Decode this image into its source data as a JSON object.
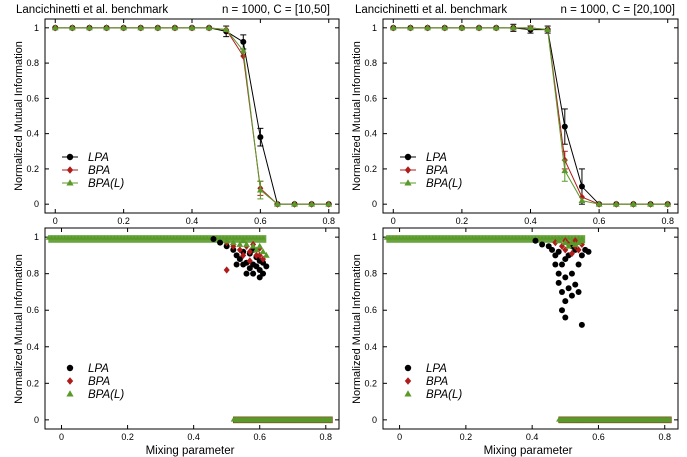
{
  "figure": {
    "colors": {
      "LPA": "#000000",
      "BPA": "#b01b1b",
      "BPA(L)": "#5a9a2a"
    },
    "ylabel": "Normalized Mutual Information",
    "xlabel": "Mixing parameter"
  },
  "chart_data": [
    {
      "type": "line",
      "title_left": "Lancichinetti et al. benchmark",
      "title_right": "n = 1000, C = [10,50]",
      "xlabel": "",
      "ylabel": "Normalized Mutual Information",
      "xlim": [
        -0.03,
        0.83
      ],
      "ylim": [
        -0.05,
        1.05
      ],
      "xticks": [
        0,
        0.2,
        0.4,
        0.6,
        0.8
      ],
      "yticks": [
        0,
        0.2,
        0.4,
        0.6,
        0.8,
        1
      ],
      "grid": false,
      "legend_position": "center-left",
      "x": [
        0,
        0.05,
        0.1,
        0.15,
        0.2,
        0.25,
        0.3,
        0.35,
        0.4,
        0.45,
        0.5,
        0.55,
        0.6,
        0.65,
        0.7,
        0.75,
        0.8
      ],
      "series": [
        {
          "name": "LPA",
          "marker": "circle",
          "y": [
            1,
            1,
            1,
            1,
            1,
            1,
            1,
            1,
            1,
            1,
            0.98,
            0.92,
            0.38,
            0,
            0,
            0,
            0
          ],
          "err": [
            0,
            0,
            0,
            0,
            0,
            0,
            0,
            0,
            0,
            0,
            0.03,
            0.04,
            0.05,
            0,
            0,
            0,
            0
          ]
        },
        {
          "name": "BPA",
          "marker": "diamond",
          "y": [
            1,
            1,
            1,
            1,
            1,
            1,
            1,
            1,
            1,
            1,
            0.99,
            0.84,
            0.09,
            0,
            0,
            0,
            0
          ],
          "err": [
            0,
            0,
            0,
            0,
            0,
            0,
            0,
            0,
            0,
            0,
            0,
            0,
            0.04,
            0,
            0,
            0,
            0
          ]
        },
        {
          "name": "BPA(L)",
          "marker": "triangle",
          "y": [
            1,
            1,
            1,
            1,
            1,
            1,
            1,
            1,
            1,
            1,
            0.99,
            0.87,
            0.08,
            0,
            0,
            0,
            0
          ],
          "err": [
            0,
            0,
            0,
            0,
            0,
            0,
            0,
            0,
            0,
            0,
            0,
            0,
            0.05,
            0,
            0,
            0,
            0
          ]
        }
      ]
    },
    {
      "type": "line",
      "title_left": "Lancichinetti et al. benchmark",
      "title_right": "n = 1000, C = [20,100]",
      "xlabel": "",
      "ylabel": "Normalized Mutual Information",
      "xlim": [
        -0.03,
        0.83
      ],
      "ylim": [
        -0.05,
        1.05
      ],
      "xticks": [
        0,
        0.2,
        0.4,
        0.6,
        0.8
      ],
      "yticks": [
        0,
        0.2,
        0.4,
        0.6,
        0.8,
        1
      ],
      "grid": false,
      "legend_position": "center-left",
      "x": [
        0,
        0.05,
        0.1,
        0.15,
        0.2,
        0.25,
        0.3,
        0.35,
        0.4,
        0.45,
        0.5,
        0.55,
        0.6,
        0.65,
        0.7,
        0.75,
        0.8
      ],
      "series": [
        {
          "name": "LPA",
          "marker": "circle",
          "y": [
            1,
            1,
            1,
            1,
            1,
            1,
            1,
            1,
            0.99,
            0.99,
            0.44,
            0.1,
            0,
            0,
            0,
            0,
            0
          ],
          "err": [
            0,
            0,
            0,
            0,
            0,
            0,
            0,
            0.02,
            0.02,
            0.02,
            0.1,
            0.1,
            0,
            0,
            0,
            0,
            0
          ]
        },
        {
          "name": "BPA",
          "marker": "diamond",
          "y": [
            1,
            1,
            1,
            1,
            1,
            1,
            1,
            1,
            1,
            0.99,
            0.25,
            0.04,
            0,
            0,
            0,
            0,
            0
          ],
          "err": [
            0,
            0,
            0,
            0,
            0,
            0,
            0,
            0,
            0,
            0,
            0.05,
            0,
            0,
            0,
            0,
            0,
            0
          ]
        },
        {
          "name": "BPA(L)",
          "marker": "triangle",
          "y": [
            1,
            1,
            1,
            1,
            1,
            1,
            1,
            1,
            1,
            0.99,
            0.19,
            0.02,
            0,
            0,
            0,
            0,
            0
          ],
          "err": [
            0,
            0,
            0,
            0,
            0,
            0,
            0,
            0,
            0,
            0,
            0.06,
            0,
            0,
            0,
            0,
            0,
            0
          ]
        }
      ]
    },
    {
      "type": "scatter",
      "xlabel": "Mixing parameter",
      "ylabel": "Normalized Mutual Information",
      "xlim": [
        -0.05,
        0.84
      ],
      "ylim": [
        -0.05,
        1.05
      ],
      "xticks": [
        0,
        0.2,
        0.4,
        0.6,
        0.8
      ],
      "yticks": [
        0,
        0.2,
        0.4,
        0.6,
        0.8,
        1
      ],
      "grid": false,
      "legend_position": "bottom-left",
      "band_high": {
        "x_range": [
          -0.04,
          0.62
        ],
        "y_range": [
          0.98,
          1.0
        ]
      },
      "band_zero": {
        "x_range": [
          0.52,
          0.82
        ],
        "y": 0
      },
      "series": [
        {
          "name": "LPA",
          "marker": "circle",
          "points": [
            [
              0.46,
              0.99
            ],
            [
              0.48,
              0.97
            ],
            [
              0.5,
              0.95
            ],
            [
              0.52,
              0.93
            ],
            [
              0.53,
              0.9
            ],
            [
              0.54,
              0.88
            ],
            [
              0.55,
              0.85
            ],
            [
              0.56,
              0.86
            ],
            [
              0.57,
              0.91
            ],
            [
              0.57,
              0.83
            ],
            [
              0.58,
              0.85
            ],
            [
              0.58,
              0.8
            ],
            [
              0.59,
              0.89
            ],
            [
              0.59,
              0.84
            ],
            [
              0.6,
              0.87
            ],
            [
              0.6,
              0.82
            ],
            [
              0.6,
              0.78
            ],
            [
              0.61,
              0.86
            ],
            [
              0.61,
              0.8
            ],
            [
              0.62,
              0.84
            ],
            [
              0.55,
              0.92
            ],
            [
              0.53,
              0.85
            ],
            [
              0.56,
              0.8
            ],
            [
              0.58,
              0.93
            ]
          ]
        },
        {
          "name": "BPA",
          "marker": "diamond",
          "points": [
            [
              0.5,
              0.97
            ],
            [
              0.52,
              0.95
            ],
            [
              0.54,
              0.93
            ],
            [
              0.55,
              0.9
            ],
            [
              0.56,
              0.95
            ],
            [
              0.57,
              0.92
            ],
            [
              0.58,
              0.96
            ],
            [
              0.59,
              0.9
            ],
            [
              0.6,
              0.94
            ],
            [
              0.61,
              0.88
            ],
            [
              0.5,
              0.82
            ],
            [
              0.57,
              0.87
            ],
            [
              0.6,
              0.9
            ]
          ]
        },
        {
          "name": "BPA(L)",
          "marker": "triangle",
          "points": [
            [
              0.5,
              0.98
            ],
            [
              0.52,
              0.97
            ],
            [
              0.54,
              0.96
            ],
            [
              0.56,
              0.96
            ],
            [
              0.58,
              0.95
            ],
            [
              0.59,
              0.93
            ],
            [
              0.6,
              0.95
            ],
            [
              0.61,
              0.92
            ],
            [
              0.62,
              0.9
            ],
            [
              0.55,
              0.98
            ]
          ]
        }
      ]
    },
    {
      "type": "scatter",
      "xlabel": "Mixing parameter",
      "ylabel": "Normalized Mutual Information",
      "xlim": [
        -0.05,
        0.84
      ],
      "ylim": [
        -0.05,
        1.05
      ],
      "xticks": [
        0,
        0.2,
        0.4,
        0.6,
        0.8
      ],
      "yticks": [
        0,
        0.2,
        0.4,
        0.6,
        0.8,
        1
      ],
      "grid": false,
      "legend_position": "bottom-left",
      "band_high": {
        "x_range": [
          -0.04,
          0.56
        ],
        "y_range": [
          0.98,
          1.0
        ]
      },
      "band_zero": {
        "x_range": [
          0.48,
          0.82
        ],
        "y": 0
      },
      "series": [
        {
          "name": "LPA",
          "marker": "circle",
          "points": [
            [
              0.41,
              0.98
            ],
            [
              0.43,
              0.96
            ],
            [
              0.45,
              0.95
            ],
            [
              0.46,
              0.93
            ],
            [
              0.47,
              0.9
            ],
            [
              0.47,
              0.85
            ],
            [
              0.48,
              0.8
            ],
            [
              0.48,
              0.75
            ],
            [
              0.49,
              0.85
            ],
            [
              0.49,
              0.7
            ],
            [
              0.49,
              0.6
            ],
            [
              0.5,
              0.78
            ],
            [
              0.5,
              0.65
            ],
            [
              0.5,
              0.56
            ],
            [
              0.51,
              0.9
            ],
            [
              0.51,
              0.72
            ],
            [
              0.52,
              0.8
            ],
            [
              0.52,
              0.68
            ],
            [
              0.53,
              0.93
            ],
            [
              0.53,
              0.74
            ],
            [
              0.54,
              0.85
            ],
            [
              0.54,
              0.7
            ],
            [
              0.55,
              0.9
            ],
            [
              0.55,
              0.52
            ],
            [
              0.56,
              0.93
            ],
            [
              0.57,
              0.92
            ],
            [
              0.48,
              0.92
            ],
            [
              0.5,
              0.88
            ],
            [
              0.52,
              0.95
            ]
          ]
        },
        {
          "name": "BPA",
          "marker": "diamond",
          "points": [
            [
              0.47,
              0.97
            ],
            [
              0.49,
              0.95
            ],
            [
              0.5,
              0.93
            ],
            [
              0.51,
              0.96
            ],
            [
              0.52,
              0.91
            ],
            [
              0.53,
              0.95
            ],
            [
              0.54,
              0.93
            ],
            [
              0.55,
              0.96
            ],
            [
              0.5,
              0.98
            ],
            [
              0.53,
              0.98
            ]
          ]
        },
        {
          "name": "BPA(L)",
          "marker": "triangle",
          "points": [
            [
              0.48,
              0.98
            ],
            [
              0.5,
              0.97
            ],
            [
              0.51,
              0.95
            ],
            [
              0.52,
              0.97
            ],
            [
              0.53,
              0.96
            ],
            [
              0.54,
              0.97
            ],
            [
              0.55,
              0.98
            ]
          ]
        }
      ]
    }
  ]
}
